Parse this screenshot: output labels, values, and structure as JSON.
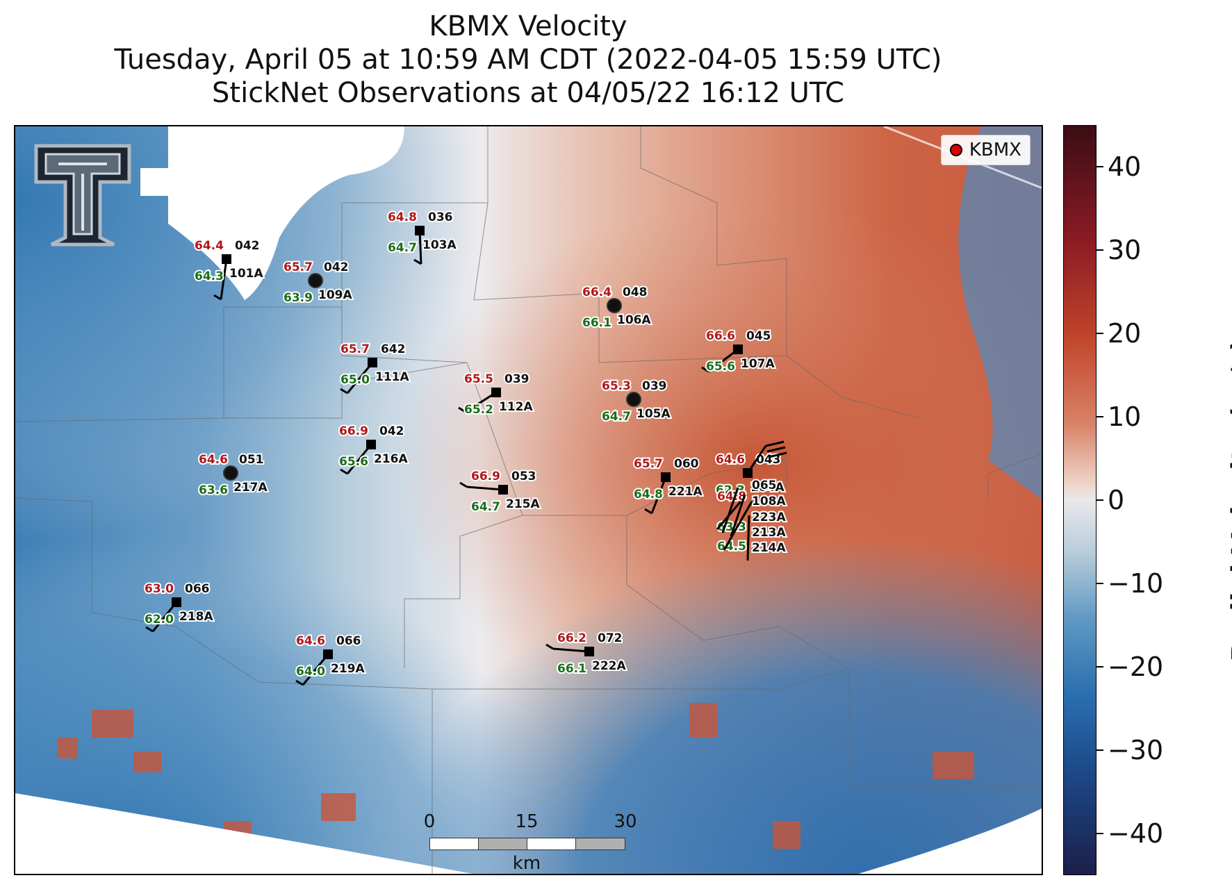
{
  "title": {
    "line1": "KBMX Velocity",
    "line2": "Tuesday, April 05 at 10:59 AM CDT (2022-04-05 15:59 UTC)",
    "line3": "StickNet Observations at 04/05/22 16:12 UTC"
  },
  "legend": {
    "label": "KBMX",
    "marker_color": "#e00000"
  },
  "colorbar": {
    "title": "Radial Velocity (m/s)",
    "ticks": [
      "40",
      "30",
      "20",
      "10",
      "0",
      "−10",
      "−20",
      "−30",
      "−40"
    ],
    "range": [
      -45,
      45
    ]
  },
  "scalebar": {
    "labels": [
      "0",
      "15",
      "30"
    ],
    "unit": "km"
  },
  "stations": [
    {
      "id": "101A",
      "temp": "64.4",
      "dew": "64.3",
      "code": "042",
      "marker": "square"
    },
    {
      "id": "109A",
      "temp": "65.7",
      "dew": "63.9",
      "code": "042",
      "marker": "circle"
    },
    {
      "id": "103A",
      "temp": "64.8",
      "dew": "64.7",
      "code": "036",
      "marker": "square"
    },
    {
      "id": "106A",
      "temp": "66.4",
      "dew": "66.1",
      "code": "048",
      "marker": "circle"
    },
    {
      "id": "111A",
      "temp": "65.7",
      "dew": "65.0",
      "code": "642",
      "marker": "square"
    },
    {
      "id": "107A",
      "temp": "66.6",
      "dew": "65.6",
      "code": "045",
      "marker": "square"
    },
    {
      "id": "112A",
      "temp": "65.5",
      "dew": "65.2",
      "code": "039",
      "marker": "square"
    },
    {
      "id": "105A",
      "temp": "65.3",
      "dew": "64.7",
      "code": "039",
      "marker": "circle"
    },
    {
      "id": "216A",
      "temp": "66.9",
      "dew": "65.6",
      "code": "042",
      "marker": "square"
    },
    {
      "id": "217A",
      "temp": "64.6",
      "dew": "63.6",
      "code": "051",
      "marker": "circle"
    },
    {
      "id": "215A",
      "temp": "66.9",
      "dew": "64.7",
      "code": "053",
      "marker": "square"
    },
    {
      "id": "221A",
      "temp": "65.7",
      "dew": "64.8",
      "code": "060",
      "marker": "square"
    },
    {
      "id": "104A",
      "temp": "64.6",
      "dew": "62.3",
      "code": "043",
      "marker": "square"
    },
    {
      "id": "218A",
      "temp": "63.0",
      "dew": "62.0",
      "code": "066",
      "marker": "square"
    },
    {
      "id": "219A",
      "temp": "64.6",
      "dew": "64.0",
      "code": "066",
      "marker": "square"
    },
    {
      "id": "222A",
      "temp": "66.2",
      "dew": "66.1",
      "code": "072",
      "marker": "square"
    }
  ],
  "cluster_labels": [
    "065",
    "108A",
    "223A",
    "213A",
    "214A",
    "64.8",
    "63.3",
    "64.5"
  ]
}
